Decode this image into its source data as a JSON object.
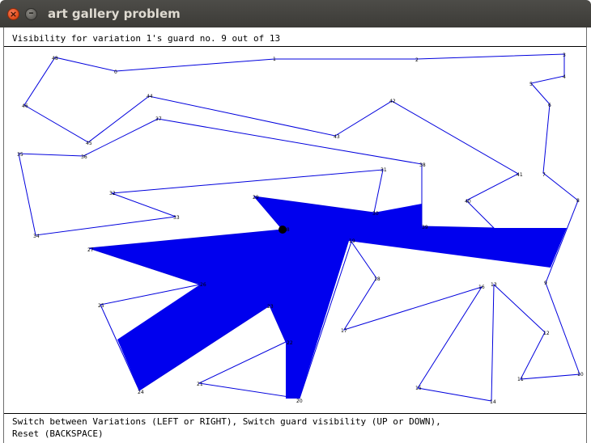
{
  "window": {
    "title": "art gallery problem",
    "close_glyph": "×",
    "minimize_glyph": "–"
  },
  "status": {
    "text": "Visibility for variation 1's guard no. 9 out of 13"
  },
  "footer": {
    "line1": "Switch between Variations (LEFT or RIGHT), Switch guard visibility (UP or DOWN),",
    "line2": "Reset (BACKSPACE)"
  },
  "colors": {
    "polygon": "#0000dd",
    "visibility": "#0000ee",
    "guard": "#000000"
  },
  "vertex_labels": [
    "48",
    "0",
    "1",
    "2",
    "3",
    "4",
    "5",
    "6",
    "7",
    "8",
    "9",
    "10",
    "11",
    "12",
    "13",
    "14",
    "15",
    "16",
    "17",
    "18",
    "19",
    "20",
    "21",
    "22",
    "23",
    "24",
    "25",
    "26",
    "27",
    "28",
    "29",
    "30",
    "31",
    "32",
    "33",
    "34",
    "35",
    "36",
    "37",
    "38",
    "39",
    "40",
    "41",
    "42",
    "43",
    "44",
    "45",
    "46",
    "47"
  ]
}
